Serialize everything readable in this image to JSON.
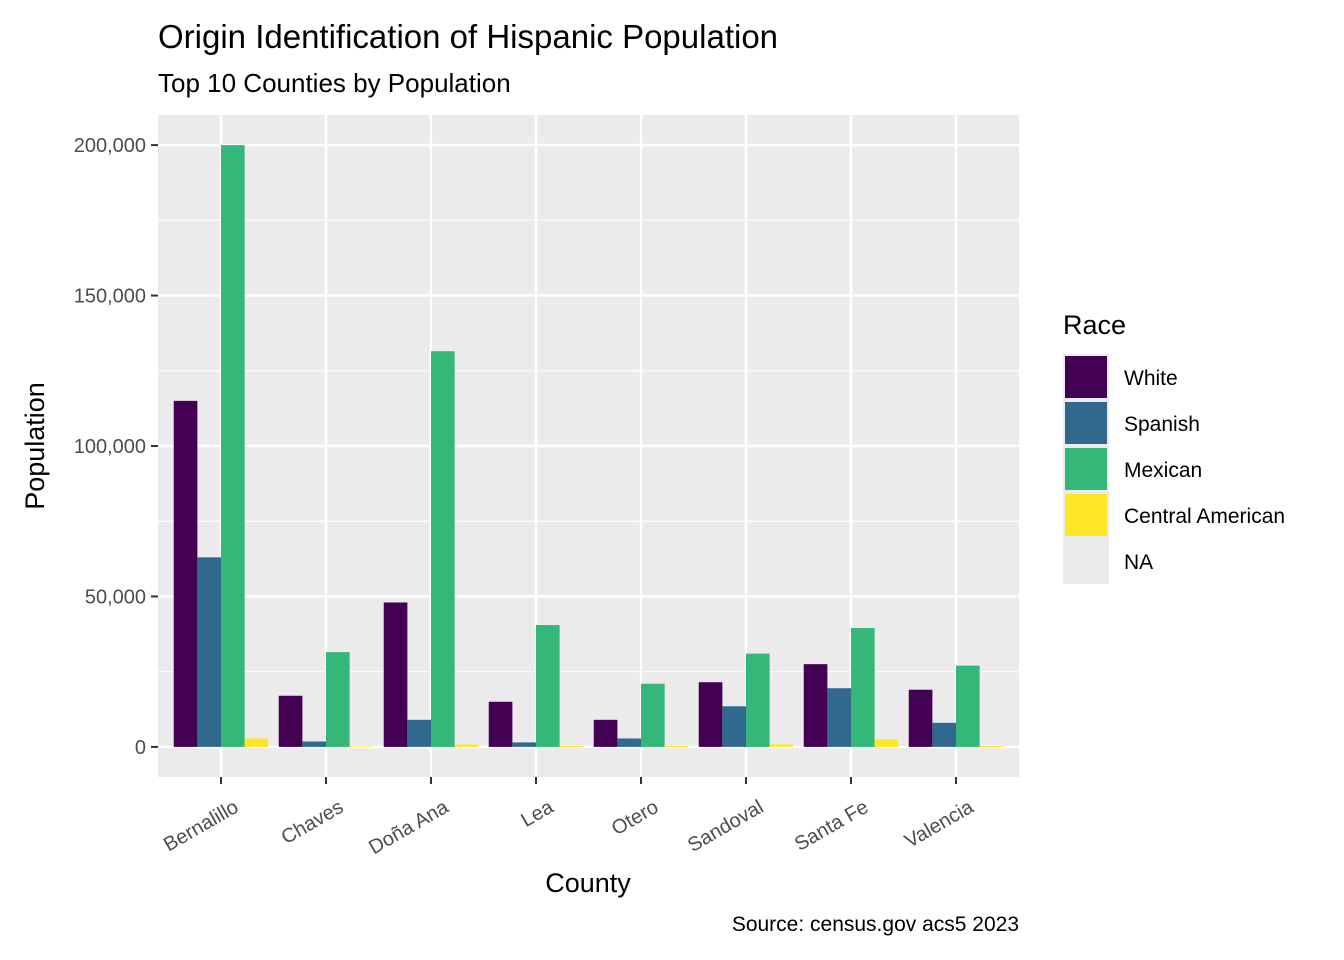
{
  "chart_data": {
    "type": "bar",
    "title": "Origin Identification of Hispanic Population",
    "subtitle": "Top 10 Counties by Population",
    "xlabel": "County",
    "ylabel": "Population",
    "caption": "Source: census.gov acs5 2023",
    "ylim": [
      -10000,
      210000
    ],
    "yticks": [
      0,
      50000,
      100000,
      150000,
      200000
    ],
    "ytick_labels": [
      "0",
      "50,000",
      "100,000",
      "150,000",
      "200,000"
    ],
    "categories": [
      "Bernalillo",
      "Chaves",
      "Doña Ana",
      "Lea",
      "Otero",
      "Sandoval",
      "Santa Fe",
      "Valencia"
    ],
    "series": [
      {
        "name": "White",
        "color": "#440154",
        "values": [
          115000,
          17000,
          48000,
          15000,
          9000,
          21500,
          27500,
          19000
        ]
      },
      {
        "name": "Spanish",
        "color": "#31688E",
        "values": [
          63000,
          1800,
          9000,
          1500,
          2800,
          13500,
          19500,
          8000
        ]
      },
      {
        "name": "Mexican",
        "color": "#35B779",
        "values": [
          200000,
          31500,
          131500,
          40500,
          21000,
          31000,
          39500,
          27000
        ]
      },
      {
        "name": "Central American",
        "color": "#FDE725",
        "values": [
          2800,
          200,
          800,
          300,
          300,
          800,
          2500,
          300
        ]
      }
    ],
    "legend": {
      "title": "Race",
      "placement": "right",
      "entries": [
        {
          "label": "White",
          "color": "#440154"
        },
        {
          "label": "Spanish",
          "color": "#31688E"
        },
        {
          "label": "Mexican",
          "color": "#35B779"
        },
        {
          "label": "Central American",
          "color": "#FDE725"
        },
        {
          "label": "NA",
          "color": "#EBEBEB"
        }
      ]
    },
    "grid": true,
    "panel_background": "#EBEBEB",
    "grid_color": "#FFFFFF"
  }
}
